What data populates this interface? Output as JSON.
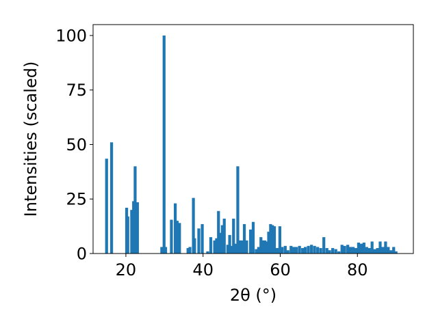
{
  "chart_data": {
    "type": "bar",
    "xlabel": "2θ (°)",
    "ylabel": "Intensities (scaled)",
    "xlim": [
      11.5,
      94.5
    ],
    "ylim": [
      0,
      105
    ],
    "xticks": [
      20,
      40,
      60,
      80
    ],
    "yticks": [
      0,
      25,
      50,
      75,
      100
    ],
    "bar_width": 0.75,
    "color": "#1f77b4",
    "grid": false,
    "x": [
      15.0,
      16.3,
      20.2,
      20.5,
      21.5,
      22.0,
      22.4,
      23.0,
      29.3,
      29.9,
      30.3,
      31.8,
      32.8,
      33.3,
      33.9,
      36.1,
      36.6,
      37.5,
      37.8,
      38.9,
      39.8,
      41.2,
      42.0,
      43.0,
      43.5,
      44.0,
      44.4,
      45.0,
      45.5,
      46.4,
      46.9,
      47.5,
      47.9,
      48.5,
      49.0,
      49.5,
      50.0,
      50.7,
      51.3,
      52.3,
      53.0,
      53.8,
      54.4,
      55.0,
      55.5,
      56.0,
      56.5,
      57.0,
      57.5,
      58.0,
      58.5,
      59.2,
      59.9,
      60.5,
      61.3,
      62.0,
      62.8,
      63.5,
      64.2,
      65.0,
      65.8,
      66.5,
      67.3,
      68.1,
      68.9,
      69.7,
      70.5,
      71.3,
      72.1,
      72.8,
      73.6,
      74.4,
      75.2,
      76.0,
      76.7,
      77.5,
      78.2,
      78.9,
      79.6,
      80.3,
      81.0,
      81.7,
      82.4,
      83.1,
      83.8,
      84.5,
      85.2,
      85.9,
      86.6,
      87.3,
      88.0,
      88.7,
      89.4,
      90.0
    ],
    "values": [
      43.5,
      51.0,
      21.0,
      17.0,
      20.0,
      24.0,
      40.0,
      23.5,
      3.0,
      100.0,
      3.0,
      15.5,
      23.0,
      15.0,
      14.0,
      2.5,
      3.0,
      25.5,
      7.0,
      11.5,
      13.5,
      1.0,
      7.5,
      6.0,
      7.0,
      19.5,
      9.5,
      13.0,
      16.0,
      4.0,
      8.5,
      3.5,
      16.0,
      4.5,
      40.0,
      6.0,
      6.0,
      13.5,
      6.0,
      11.0,
      14.5,
      2.0,
      3.0,
      7.5,
      6.0,
      6.0,
      5.5,
      10.0,
      13.5,
      13.0,
      12.5,
      2.5,
      12.5,
      3.0,
      3.5,
      1.5,
      3.5,
      3.0,
      3.0,
      3.5,
      2.5,
      3.0,
      3.5,
      4.0,
      3.5,
      3.0,
      2.5,
      7.5,
      2.5,
      1.5,
      2.5,
      2.0,
      1.0,
      4.0,
      3.5,
      4.0,
      3.0,
      3.0,
      2.5,
      5.0,
      4.5,
      5.0,
      3.0,
      2.5,
      5.5,
      2.0,
      2.5,
      5.5,
      3.0,
      5.5,
      3.0,
      1.5,
      3.0,
      1.0
    ]
  }
}
